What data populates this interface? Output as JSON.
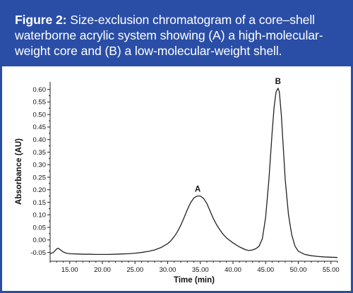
{
  "caption": {
    "label": "Figure 2:",
    "text": " Size-exclusion chromatogram of a core–shell waterborne acrylic system showing (A) a high-molecular-weight core and (B) a low-molecular-weight shell."
  },
  "colors": {
    "frame": "#2a4ea6",
    "caption_text": "#ffffff",
    "trace": "#222222",
    "axis": "#222222"
  },
  "chart_data": {
    "type": "line",
    "title": "",
    "xlabel": "Time (min)",
    "ylabel": "Absorbance (AU)",
    "xlim": [
      12.0,
      56.0
    ],
    "ylim": [
      -0.085,
      0.63
    ],
    "grid": false,
    "xticks": [
      15,
      20,
      25,
      30,
      35,
      40,
      45,
      50,
      55
    ],
    "xtick_labels": [
      "15.00",
      "20.00",
      "25.00",
      "30.00",
      "35.00",
      "40.00",
      "45.00",
      "50.00",
      "55.00"
    ],
    "yticks": [
      -0.05,
      0.0,
      0.05,
      0.1,
      0.15,
      0.2,
      0.25,
      0.3,
      0.35,
      0.4,
      0.45,
      0.5,
      0.55,
      0.6
    ],
    "ytick_labels": [
      "-0.05",
      "0.00",
      "0.05",
      "0.10",
      "0.15",
      "0.20",
      "0.25",
      "0.30",
      "0.35",
      "0.40",
      "0.45",
      "0.50",
      "0.55",
      "0.60"
    ],
    "series": [
      {
        "x": [
          12.0,
          12.5,
          13.0,
          13.2,
          13.5,
          14.0,
          14.5,
          15.0,
          16.0,
          17.0,
          18.0,
          19.0,
          20.0,
          21.0,
          22.0,
          23.0,
          24.0,
          25.0,
          26.0,
          27.0,
          28.0,
          29.0,
          30.0,
          30.5,
          31.0,
          31.5,
          32.0,
          32.5,
          33.0,
          33.5,
          34.0,
          34.5,
          35.0,
          35.5,
          36.0,
          36.5,
          37.0,
          37.5,
          38.0,
          38.5,
          39.0,
          40.0,
          41.0,
          42.0,
          42.5,
          43.0,
          43.5,
          44.0,
          44.5,
          45.0,
          45.5,
          46.0,
          46.3,
          46.6,
          46.9,
          47.1,
          47.4,
          47.7,
          48.0,
          48.5,
          49.0,
          49.5,
          50.0,
          51.0,
          52.0,
          53.0,
          54.0,
          55.0,
          56.0
        ],
        "y": [
          -0.055,
          -0.05,
          -0.036,
          -0.033,
          -0.038,
          -0.048,
          -0.053,
          -0.055,
          -0.056,
          -0.057,
          -0.057,
          -0.058,
          -0.058,
          -0.058,
          -0.057,
          -0.056,
          -0.055,
          -0.053,
          -0.05,
          -0.046,
          -0.04,
          -0.03,
          -0.015,
          -0.003,
          0.013,
          0.033,
          0.058,
          0.088,
          0.12,
          0.148,
          0.167,
          0.175,
          0.175,
          0.165,
          0.145,
          0.115,
          0.085,
          0.06,
          0.04,
          0.022,
          0.008,
          -0.012,
          -0.028,
          -0.04,
          -0.042,
          -0.04,
          -0.035,
          -0.025,
          0.005,
          0.09,
          0.24,
          0.43,
          0.53,
          0.59,
          0.605,
          0.59,
          0.5,
          0.37,
          0.24,
          0.1,
          0.02,
          -0.025,
          -0.045,
          -0.058,
          -0.063,
          -0.066,
          -0.068,
          -0.069,
          -0.07
        ]
      }
    ],
    "annotations": [
      {
        "text": "A",
        "x": 34.6,
        "y": 0.175
      },
      {
        "text": "B",
        "x": 46.9,
        "y": 0.605
      }
    ]
  }
}
